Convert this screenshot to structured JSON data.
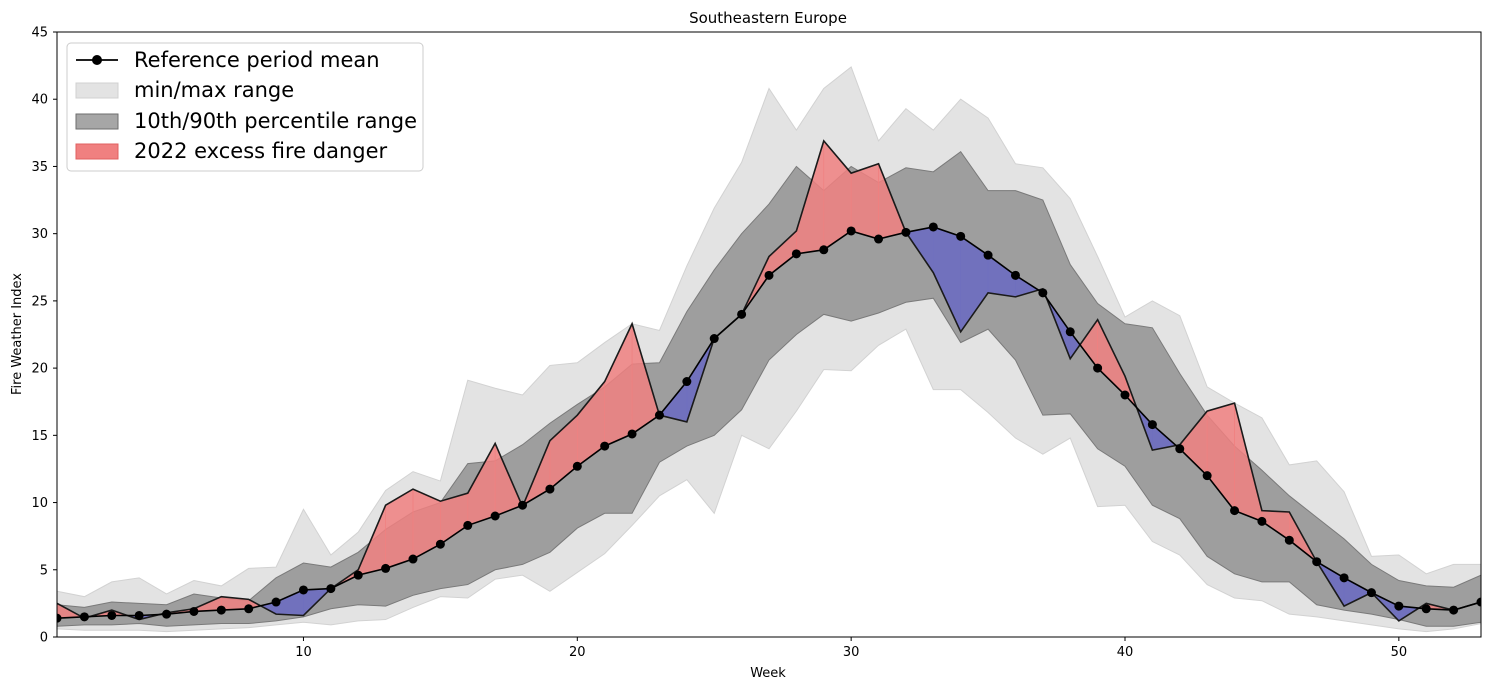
{
  "chart_data": {
    "type": "area",
    "title": "Southeastern Europe",
    "xlabel": "Week",
    "ylabel": "Fire Weather Index",
    "xlim": [
      1,
      53
    ],
    "ylim": [
      0,
      45
    ],
    "x_ticks": [
      10,
      20,
      30,
      40,
      50
    ],
    "y_ticks": [
      0,
      5,
      10,
      15,
      20,
      25,
      30,
      35,
      40,
      45
    ],
    "grid": false,
    "legend_position": "top-left",
    "legend": [
      {
        "label": "Reference period mean",
        "kind": "line-marker",
        "color": "#000000"
      },
      {
        "label": "min/max range",
        "kind": "patch",
        "color": "#e3e3e3"
      },
      {
        "label": "10th/90th percentile range",
        "kind": "patch",
        "color": "#a6a6a6"
      },
      {
        "label": "2022 excess fire danger",
        "kind": "patch",
        "color": "#f08080"
      }
    ],
    "colors": {
      "minmax": "#e3e3e3",
      "percentile": "#9e9e9e",
      "excess": "#f08080",
      "deficit": "#6f6fbf",
      "line": "#000000"
    },
    "weeks": [
      1,
      2,
      3,
      4,
      5,
      6,
      7,
      8,
      9,
      10,
      11,
      12,
      13,
      14,
      15,
      16,
      17,
      18,
      19,
      20,
      21,
      22,
      23,
      24,
      25,
      26,
      27,
      28,
      29,
      30,
      31,
      32,
      33,
      34,
      35,
      36,
      37,
      38,
      39,
      40,
      41,
      42,
      43,
      44,
      45,
      46,
      47,
      48,
      49,
      50,
      51,
      52,
      53
    ],
    "series": [
      {
        "name": "Reference period mean",
        "values": [
          1.4,
          1.5,
          1.6,
          1.6,
          1.7,
          1.9,
          2.0,
          2.1,
          2.6,
          3.5,
          3.6,
          4.6,
          5.1,
          5.8,
          6.9,
          8.3,
          9.0,
          9.8,
          11.0,
          12.7,
          14.2,
          15.1,
          16.5,
          19.0,
          22.2,
          24.0,
          26.9,
          28.5,
          28.8,
          30.2,
          29.6,
          30.1,
          30.5,
          29.8,
          28.4,
          26.9,
          25.6,
          22.7,
          20.0,
          18.0,
          15.8,
          14.0,
          12.0,
          9.4,
          8.6,
          7.2,
          5.6,
          4.4,
          3.3,
          2.3,
          2.1,
          2.0,
          2.6
        ]
      },
      {
        "name": "2022",
        "values": [
          2.5,
          1.4,
          2.0,
          1.3,
          1.8,
          2.1,
          3.0,
          2.8,
          1.7,
          1.6,
          3.6,
          5.0,
          9.8,
          11.0,
          10.1,
          10.7,
          14.4,
          9.7,
          14.6,
          16.5,
          19.0,
          23.3,
          16.5,
          16.0,
          22.2,
          24.0,
          28.3,
          30.2,
          36.9,
          34.5,
          35.2,
          30.1,
          27.1,
          22.7,
          25.6,
          25.3,
          25.9,
          20.7,
          23.6,
          19.4,
          13.9,
          14.3,
          16.8,
          17.4,
          9.4,
          9.3,
          5.6,
          2.3,
          3.3,
          1.2,
          2.5,
          2.0,
          2.6
        ]
      },
      {
        "name": "min",
        "values": [
          0.6,
          0.5,
          0.5,
          0.5,
          0.4,
          0.5,
          0.6,
          0.7,
          0.9,
          1.1,
          0.9,
          1.2,
          1.3,
          2.2,
          3.0,
          2.9,
          4.3,
          4.6,
          3.4,
          4.8,
          6.2,
          8.3,
          10.5,
          11.7,
          9.2,
          15.0,
          14.0,
          16.8,
          19.9,
          19.8,
          21.7,
          22.9,
          18.4,
          18.4,
          16.7,
          14.8,
          13.6,
          14.8,
          9.7,
          9.8,
          7.1,
          6.1,
          3.9,
          2.9,
          2.7,
          1.7,
          1.5,
          1.2,
          0.9,
          0.6,
          0.4,
          0.6,
          1.0
        ]
      },
      {
        "name": "p10",
        "values": [
          0.8,
          0.9,
          0.9,
          1.0,
          0.8,
          0.9,
          1.0,
          1.0,
          1.2,
          1.5,
          2.1,
          2.4,
          2.3,
          3.1,
          3.6,
          3.9,
          5.0,
          5.4,
          6.3,
          8.1,
          9.2,
          9.2,
          13.0,
          14.2,
          15.0,
          16.9,
          20.6,
          22.5,
          24.0,
          23.5,
          24.1,
          24.9,
          25.2,
          21.9,
          22.9,
          20.6,
          16.5,
          16.6,
          14.0,
          12.7,
          9.8,
          8.8,
          6.0,
          4.7,
          4.1,
          4.1,
          2.4,
          2.0,
          1.7,
          1.3,
          0.8,
          0.8,
          1.1
        ]
      },
      {
        "name": "p90",
        "values": [
          2.4,
          2.2,
          2.6,
          2.5,
          2.4,
          3.2,
          2.9,
          2.7,
          4.4,
          5.5,
          5.2,
          6.3,
          8.0,
          9.3,
          10.0,
          12.9,
          13.1,
          14.3,
          15.9,
          17.3,
          18.6,
          20.3,
          20.4,
          24.2,
          27.3,
          30.0,
          32.2,
          35.0,
          33.2,
          35.0,
          33.8,
          34.9,
          34.6,
          36.1,
          33.2,
          33.2,
          32.5,
          27.7,
          24.8,
          23.3,
          23.0,
          19.6,
          16.5,
          14.2,
          12.4,
          10.5,
          8.9,
          7.3,
          5.4,
          4.2,
          3.8,
          3.7,
          4.6
        ]
      },
      {
        "name": "max",
        "values": [
          3.4,
          3.0,
          4.1,
          4.4,
          3.2,
          4.2,
          3.8,
          5.1,
          5.2,
          9.5,
          6.1,
          7.8,
          10.9,
          12.3,
          11.6,
          19.1,
          18.5,
          18.0,
          20.2,
          20.4,
          21.9,
          23.3,
          22.8,
          27.6,
          31.9,
          35.3,
          40.8,
          37.7,
          40.8,
          42.4,
          36.9,
          39.3,
          37.7,
          40.0,
          38.6,
          35.2,
          34.9,
          32.6,
          28.3,
          23.8,
          25.0,
          23.9,
          18.6,
          17.4,
          16.3,
          12.8,
          13.1,
          10.8,
          6.0,
          6.1,
          4.7,
          5.4,
          5.4
        ]
      }
    ]
  }
}
